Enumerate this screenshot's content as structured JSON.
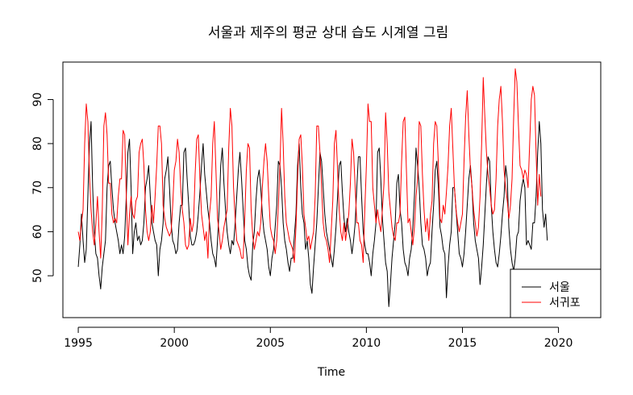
{
  "chart_data": {
    "type": "line",
    "title": "서울과 제주의 평균 상대 습도 시계열 그림",
    "xlabel": "Time",
    "ylabel": "",
    "xlim": [
      1994.2,
      2022.2
    ],
    "ylim": [
      40.5,
      98.5
    ],
    "x_ticks": [
      1995,
      2000,
      2005,
      2010,
      2015,
      2020
    ],
    "y_ticks": [
      50,
      60,
      70,
      80,
      90
    ],
    "grid": false,
    "legend_position": "bottom-right",
    "x_start": 1995,
    "frequency": "monthly",
    "series": [
      {
        "name": "서울",
        "color": "#000000",
        "values": [
          52,
          57,
          64,
          58,
          53,
          56,
          68,
          80,
          85,
          70,
          60,
          55,
          54,
          50,
          47,
          52,
          55,
          58,
          70,
          75,
          76,
          70,
          65,
          62,
          60,
          58,
          55,
          57,
          55,
          59,
          68,
          78,
          81,
          70,
          55,
          60,
          62,
          58,
          59,
          57,
          58,
          62,
          70,
          72,
          75,
          68,
          62,
          60,
          58,
          57,
          50,
          56,
          58,
          62,
          72,
          74,
          77,
          70,
          62,
          58,
          57,
          55,
          56,
          62,
          66,
          66,
          78,
          79,
          72,
          66,
          59,
          57,
          57,
          58,
          60,
          64,
          69,
          75,
          80,
          73,
          69,
          65,
          62,
          58,
          55,
          54,
          52,
          58,
          65,
          75,
          79,
          71,
          65,
          60,
          57,
          55,
          58,
          57,
          62,
          68,
          74,
          78,
          72,
          65,
          58,
          56,
          52,
          50,
          49,
          57,
          60,
          67,
          72,
          74,
          70,
          64,
          60,
          58,
          56,
          52,
          50,
          54,
          56,
          61,
          66,
          76,
          75,
          70,
          62,
          58,
          56,
          53,
          51,
          54,
          54,
          59,
          64,
          75,
          80,
          70,
          64,
          62,
          56,
          58,
          54,
          48,
          46,
          52,
          57,
          62,
          70,
          78,
          76,
          70,
          64,
          60,
          58,
          56,
          54,
          52,
          56,
          61,
          68,
          75,
          76,
          69,
          63,
          60,
          63,
          60,
          58,
          55,
          58,
          62,
          70,
          77,
          77,
          68,
          60,
          57,
          55,
          55,
          53,
          50,
          55,
          58,
          62,
          78,
          79,
          72,
          63,
          58,
          53,
          51,
          43,
          48,
          54,
          58,
          62,
          71,
          73,
          65,
          62,
          56,
          53,
          52,
          50,
          54,
          56,
          61,
          68,
          79,
          75,
          70,
          62,
          57,
          56,
          54,
          50,
          52,
          53,
          60,
          66,
          74,
          76,
          70,
          61,
          59,
          56,
          55,
          45,
          52,
          57,
          60,
          70,
          70,
          65,
          60,
          55,
          54,
          52,
          55,
          60,
          66,
          72,
          75,
          70,
          62,
          58,
          56,
          54,
          48,
          52,
          57,
          64,
          71,
          77,
          76,
          66,
          60,
          56,
          53,
          52,
          55,
          59,
          64,
          68,
          75,
          72,
          61,
          56,
          53,
          51,
          54,
          59,
          60,
          67,
          70,
          72,
          70,
          57,
          58,
          57,
          56,
          62,
          62,
          68,
          78,
          85,
          80,
          65,
          61,
          64,
          58
        ]
      },
      {
        "name": "서귀포",
        "color": "#ff0000",
        "values": [
          60,
          58,
          62,
          65,
          80,
          89,
          85,
          73,
          65,
          60,
          57,
          62,
          68,
          60,
          54,
          65,
          84,
          87,
          82,
          71,
          71,
          64,
          62,
          63,
          62,
          68,
          72,
          72,
          83,
          82,
          68,
          57,
          64,
          68,
          64,
          63,
          67,
          68,
          78,
          80,
          81,
          75,
          65,
          60,
          58,
          60,
          66,
          62,
          68,
          75,
          84,
          84,
          80,
          66,
          63,
          61,
          60,
          59,
          60,
          66,
          74,
          76,
          81,
          78,
          70,
          65,
          62,
          57,
          56,
          57,
          63,
          60,
          62,
          73,
          81,
          82,
          72,
          64,
          61,
          58,
          60,
          54,
          64,
          68,
          80,
          85,
          74,
          63,
          60,
          56,
          58,
          61,
          63,
          65,
          79,
          88,
          84,
          70,
          63,
          58,
          57,
          56,
          54,
          54,
          63,
          74,
          80,
          79,
          65,
          59,
          56,
          58,
          60,
          59,
          62,
          70,
          76,
          80,
          76,
          68,
          61,
          59,
          58,
          55,
          58,
          66,
          75,
          88,
          80,
          68,
          62,
          60,
          58,
          57,
          56,
          53,
          61,
          72,
          81,
          82,
          75,
          64,
          61,
          58,
          59,
          56,
          58,
          60,
          68,
          84,
          84,
          78,
          70,
          62,
          59,
          58,
          56,
          53,
          60,
          67,
          80,
          83,
          74,
          65,
          60,
          58,
          62,
          58,
          61,
          64,
          71,
          81,
          78,
          70,
          62,
          62,
          58,
          57,
          53,
          65,
          75,
          89,
          85,
          85,
          70,
          66,
          62,
          65,
          62,
          60,
          65,
          71,
          87,
          80,
          69,
          65,
          61,
          59,
          58,
          62,
          62,
          64,
          76,
          85,
          86,
          74,
          62,
          63,
          60,
          57,
          61,
          68,
          72,
          85,
          84,
          73,
          65,
          60,
          63,
          58,
          64,
          67,
          80,
          85,
          84,
          75,
          63,
          62,
          66,
          64,
          69,
          75,
          84,
          88,
          79,
          70,
          65,
          62,
          60,
          62,
          64,
          76,
          86,
          92,
          82,
          74,
          70,
          65,
          62,
          59,
          61,
          68,
          80,
          95,
          86,
          78,
          73,
          70,
          66,
          64,
          65,
          72,
          84,
          90,
          93,
          85,
          74,
          70,
          67,
          63,
          66,
          72,
          86,
          97,
          94,
          84,
          75,
          74,
          72,
          74,
          73,
          70,
          80,
          90,
          93,
          91,
          78,
          66,
          73,
          68
        ]
      }
    ]
  }
}
